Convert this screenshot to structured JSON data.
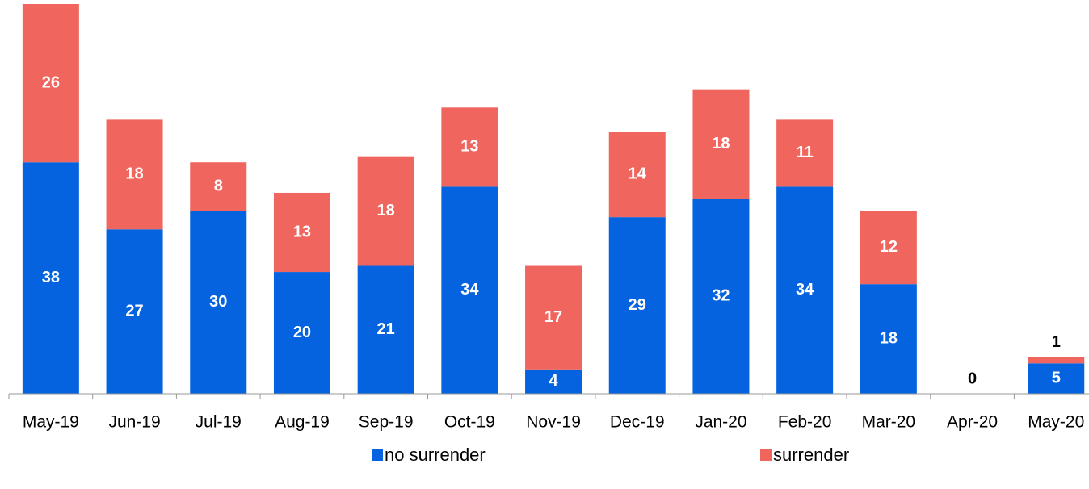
{
  "chart_data": {
    "type": "stacked-bar",
    "categories": [
      "May-19",
      "Jun-19",
      "Jul-19",
      "Aug-19",
      "Sep-19",
      "Oct-19",
      "Nov-19",
      "Dec-19",
      "Jan-20",
      "Feb-20",
      "Mar-20",
      "Apr-20",
      "May-20"
    ],
    "series": [
      {
        "name": "no surrender",
        "color": "#0563e0",
        "values": [
          38,
          27,
          30,
          20,
          21,
          34,
          4,
          29,
          32,
          34,
          18,
          0,
          5
        ]
      },
      {
        "name": "surrender",
        "color": "#f0665e",
        "values": [
          26,
          18,
          8,
          13,
          18,
          13,
          17,
          14,
          18,
          11,
          12,
          0,
          1
        ]
      }
    ],
    "ylim": [
      0,
      64
    ]
  }
}
